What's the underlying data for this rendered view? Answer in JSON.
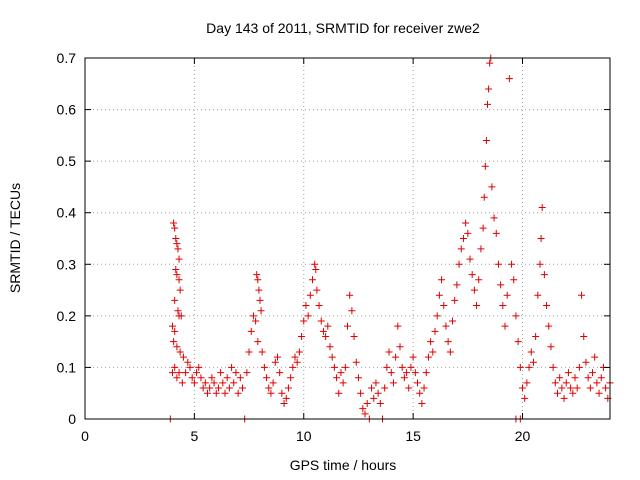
{
  "chart_data": {
    "type": "scatter",
    "title": "Day 143 of 2011, SRMTID for receiver zwe2",
    "xlabel": "GPS time / hours",
    "ylabel": "SRMTID / TECUs",
    "xlim": [
      0,
      24
    ],
    "ylim": [
      0,
      0.7
    ],
    "x_ticks": [
      0,
      5,
      10,
      15,
      20
    ],
    "y_ticks": [
      0,
      0.1,
      0.2,
      0.3,
      0.4,
      0.5,
      0.6,
      0.7
    ],
    "x_tick_labels": [
      "0",
      "5",
      "10",
      "15",
      "20"
    ],
    "y_tick_labels": [
      "0",
      "0.1",
      "0.2",
      "0.3",
      "0.4",
      "0.5",
      "0.6",
      "0.7"
    ],
    "grid": true,
    "marker": "+",
    "color": "#e00000",
    "series": [
      {
        "name": "SRMTID",
        "points": [
          [
            3.9,
            0.0
          ],
          [
            7.3,
            0.0
          ],
          [
            19.7,
            0.0
          ],
          [
            19.9,
            0.0
          ],
          [
            4.05,
            0.38
          ],
          [
            4.1,
            0.37
          ],
          [
            4.15,
            0.35
          ],
          [
            4.2,
            0.34
          ],
          [
            4.25,
            0.33
          ],
          [
            4.3,
            0.31
          ],
          [
            4.15,
            0.29
          ],
          [
            4.2,
            0.28
          ],
          [
            4.3,
            0.27
          ],
          [
            4.35,
            0.25
          ],
          [
            4.1,
            0.23
          ],
          [
            4.25,
            0.21
          ],
          [
            4.3,
            0.2
          ],
          [
            4.4,
            0.2
          ],
          [
            4.0,
            0.18
          ],
          [
            4.1,
            0.17
          ],
          [
            4.05,
            0.15
          ],
          [
            4.2,
            0.14
          ],
          [
            4.35,
            0.13
          ],
          [
            4.5,
            0.12
          ],
          [
            4.1,
            0.1
          ],
          [
            4.3,
            0.09
          ],
          [
            4.6,
            0.09
          ],
          [
            4.2,
            0.08
          ],
          [
            4.45,
            0.07
          ],
          [
            4.0,
            0.09
          ],
          [
            4.7,
            0.11
          ],
          [
            4.8,
            0.1
          ],
          [
            4.9,
            0.08
          ],
          [
            5.0,
            0.07
          ],
          [
            5.1,
            0.09
          ],
          [
            5.2,
            0.1
          ],
          [
            5.3,
            0.08
          ],
          [
            5.4,
            0.06
          ],
          [
            5.5,
            0.07
          ],
          [
            5.6,
            0.05
          ],
          [
            5.7,
            0.06
          ],
          [
            5.8,
            0.08
          ],
          [
            5.9,
            0.07
          ],
          [
            6.0,
            0.05
          ],
          [
            6.1,
            0.06
          ],
          [
            6.2,
            0.09
          ],
          [
            6.3,
            0.07
          ],
          [
            6.4,
            0.05
          ],
          [
            6.5,
            0.08
          ],
          [
            6.6,
            0.06
          ],
          [
            6.7,
            0.1
          ],
          [
            6.8,
            0.07
          ],
          [
            6.9,
            0.09
          ],
          [
            7.0,
            0.05
          ],
          [
            7.1,
            0.08
          ],
          [
            7.2,
            0.06
          ],
          [
            7.4,
            0.09
          ],
          [
            7.5,
            0.13
          ],
          [
            7.6,
            0.17
          ],
          [
            7.7,
            0.2
          ],
          [
            7.8,
            0.19
          ],
          [
            7.85,
            0.28
          ],
          [
            7.9,
            0.27
          ],
          [
            7.95,
            0.25
          ],
          [
            8.0,
            0.23
          ],
          [
            8.05,
            0.21
          ],
          [
            7.9,
            0.15
          ],
          [
            8.1,
            0.13
          ],
          [
            8.2,
            0.1
          ],
          [
            8.3,
            0.08
          ],
          [
            8.4,
            0.06
          ],
          [
            8.5,
            0.05
          ],
          [
            8.6,
            0.07
          ],
          [
            8.7,
            0.11
          ],
          [
            8.8,
            0.12
          ],
          [
            8.9,
            0.09
          ],
          [
            9.0,
            0.05
          ],
          [
            9.1,
            0.03
          ],
          [
            9.2,
            0.04
          ],
          [
            9.3,
            0.06
          ],
          [
            9.4,
            0.08
          ],
          [
            9.5,
            0.1
          ],
          [
            9.6,
            0.12
          ],
          [
            9.7,
            0.11
          ],
          [
            9.8,
            0.13
          ],
          [
            9.9,
            0.16
          ],
          [
            10.0,
            0.19
          ],
          [
            10.1,
            0.22
          ],
          [
            10.2,
            0.2
          ],
          [
            10.3,
            0.24
          ],
          [
            10.4,
            0.27
          ],
          [
            10.5,
            0.3
          ],
          [
            10.55,
            0.29
          ],
          [
            10.6,
            0.25
          ],
          [
            10.7,
            0.22
          ],
          [
            10.8,
            0.19
          ],
          [
            10.9,
            0.17
          ],
          [
            11.0,
            0.16
          ],
          [
            11.1,
            0.18
          ],
          [
            11.2,
            0.14
          ],
          [
            11.3,
            0.12
          ],
          [
            11.4,
            0.1
          ],
          [
            11.5,
            0.08
          ],
          [
            11.6,
            0.05
          ],
          [
            11.7,
            0.09
          ],
          [
            11.8,
            0.07
          ],
          [
            11.9,
            0.1
          ],
          [
            12.0,
            0.18
          ],
          [
            12.1,
            0.24
          ],
          [
            12.2,
            0.21
          ],
          [
            12.3,
            0.16
          ],
          [
            12.4,
            0.11
          ],
          [
            12.5,
            0.08
          ],
          [
            12.6,
            0.05
          ],
          [
            12.7,
            0.02
          ],
          [
            12.8,
            0.01
          ],
          [
            12.9,
            0.03
          ],
          [
            13.0,
            0.0
          ],
          [
            13.1,
            0.06
          ],
          [
            13.2,
            0.04
          ],
          [
            13.3,
            0.07
          ],
          [
            13.4,
            0.05
          ],
          [
            13.5,
            0.03
          ],
          [
            13.6,
            0.0
          ],
          [
            13.7,
            0.06
          ],
          [
            13.8,
            0.1
          ],
          [
            13.9,
            0.13
          ],
          [
            14.0,
            0.09
          ],
          [
            14.1,
            0.07
          ],
          [
            14.2,
            0.12
          ],
          [
            14.3,
            0.18
          ],
          [
            14.4,
            0.14
          ],
          [
            14.5,
            0.1
          ],
          [
            14.6,
            0.08
          ],
          [
            14.7,
            0.09
          ],
          [
            14.8,
            0.06
          ],
          [
            14.9,
            0.1
          ],
          [
            15.0,
            0.12
          ],
          [
            15.1,
            0.09
          ],
          [
            15.2,
            0.07
          ],
          [
            15.3,
            0.05
          ],
          [
            15.4,
            0.03
          ],
          [
            15.5,
            0.06
          ],
          [
            15.6,
            0.09
          ],
          [
            15.7,
            0.12
          ],
          [
            15.8,
            0.15
          ],
          [
            15.9,
            0.13
          ],
          [
            16.0,
            0.17
          ],
          [
            16.1,
            0.2
          ],
          [
            16.2,
            0.24
          ],
          [
            16.3,
            0.27
          ],
          [
            16.4,
            0.22
          ],
          [
            16.5,
            0.18
          ],
          [
            16.6,
            0.15
          ],
          [
            16.7,
            0.13
          ],
          [
            16.8,
            0.19
          ],
          [
            16.9,
            0.23
          ],
          [
            17.0,
            0.26
          ],
          [
            17.1,
            0.3
          ],
          [
            17.2,
            0.33
          ],
          [
            17.3,
            0.35
          ],
          [
            17.4,
            0.38
          ],
          [
            17.5,
            0.36
          ],
          [
            17.6,
            0.31
          ],
          [
            17.7,
            0.28
          ],
          [
            17.8,
            0.25
          ],
          [
            17.9,
            0.22
          ],
          [
            18.0,
            0.27
          ],
          [
            18.1,
            0.33
          ],
          [
            18.2,
            0.37
          ],
          [
            18.25,
            0.43
          ],
          [
            18.3,
            0.49
          ],
          [
            18.35,
            0.54
          ],
          [
            18.4,
            0.61
          ],
          [
            18.45,
            0.64
          ],
          [
            18.5,
            0.69
          ],
          [
            18.55,
            0.7
          ],
          [
            18.6,
            0.45
          ],
          [
            18.7,
            0.39
          ],
          [
            18.8,
            0.36
          ],
          [
            18.9,
            0.3
          ],
          [
            19.0,
            0.26
          ],
          [
            19.1,
            0.22
          ],
          [
            19.2,
            0.18
          ],
          [
            19.3,
            0.24
          ],
          [
            19.4,
            0.66
          ],
          [
            19.5,
            0.3
          ],
          [
            19.6,
            0.27
          ],
          [
            19.7,
            0.2
          ],
          [
            19.8,
            0.15
          ],
          [
            19.9,
            0.1
          ],
          [
            20.0,
            0.06
          ],
          [
            20.1,
            0.04
          ],
          [
            20.2,
            0.07
          ],
          [
            20.3,
            0.1
          ],
          [
            20.4,
            0.13
          ],
          [
            20.5,
            0.11
          ],
          [
            20.6,
            0.16
          ],
          [
            20.7,
            0.24
          ],
          [
            20.8,
            0.3
          ],
          [
            20.85,
            0.35
          ],
          [
            20.9,
            0.41
          ],
          [
            21.0,
            0.28
          ],
          [
            21.1,
            0.22
          ],
          [
            21.2,
            0.18
          ],
          [
            21.3,
            0.14
          ],
          [
            21.4,
            0.1
          ],
          [
            21.5,
            0.07
          ],
          [
            21.6,
            0.05
          ],
          [
            21.7,
            0.08
          ],
          [
            21.8,
            0.06
          ],
          [
            21.9,
            0.04
          ],
          [
            22.0,
            0.07
          ],
          [
            22.1,
            0.09
          ],
          [
            22.2,
            0.06
          ],
          [
            22.3,
            0.05
          ],
          [
            22.4,
            0.08
          ],
          [
            22.5,
            0.06
          ],
          [
            22.6,
            0.1
          ],
          [
            22.7,
            0.24
          ],
          [
            22.8,
            0.16
          ],
          [
            22.9,
            0.11
          ],
          [
            23.0,
            0.08
          ],
          [
            23.1,
            0.06
          ],
          [
            23.2,
            0.09
          ],
          [
            23.3,
            0.12
          ],
          [
            23.4,
            0.07
          ],
          [
            23.5,
            0.05
          ],
          [
            23.6,
            0.08
          ],
          [
            23.7,
            0.1
          ],
          [
            23.8,
            0.06
          ],
          [
            23.9,
            0.04
          ],
          [
            24.0,
            0.07
          ]
        ]
      }
    ]
  }
}
